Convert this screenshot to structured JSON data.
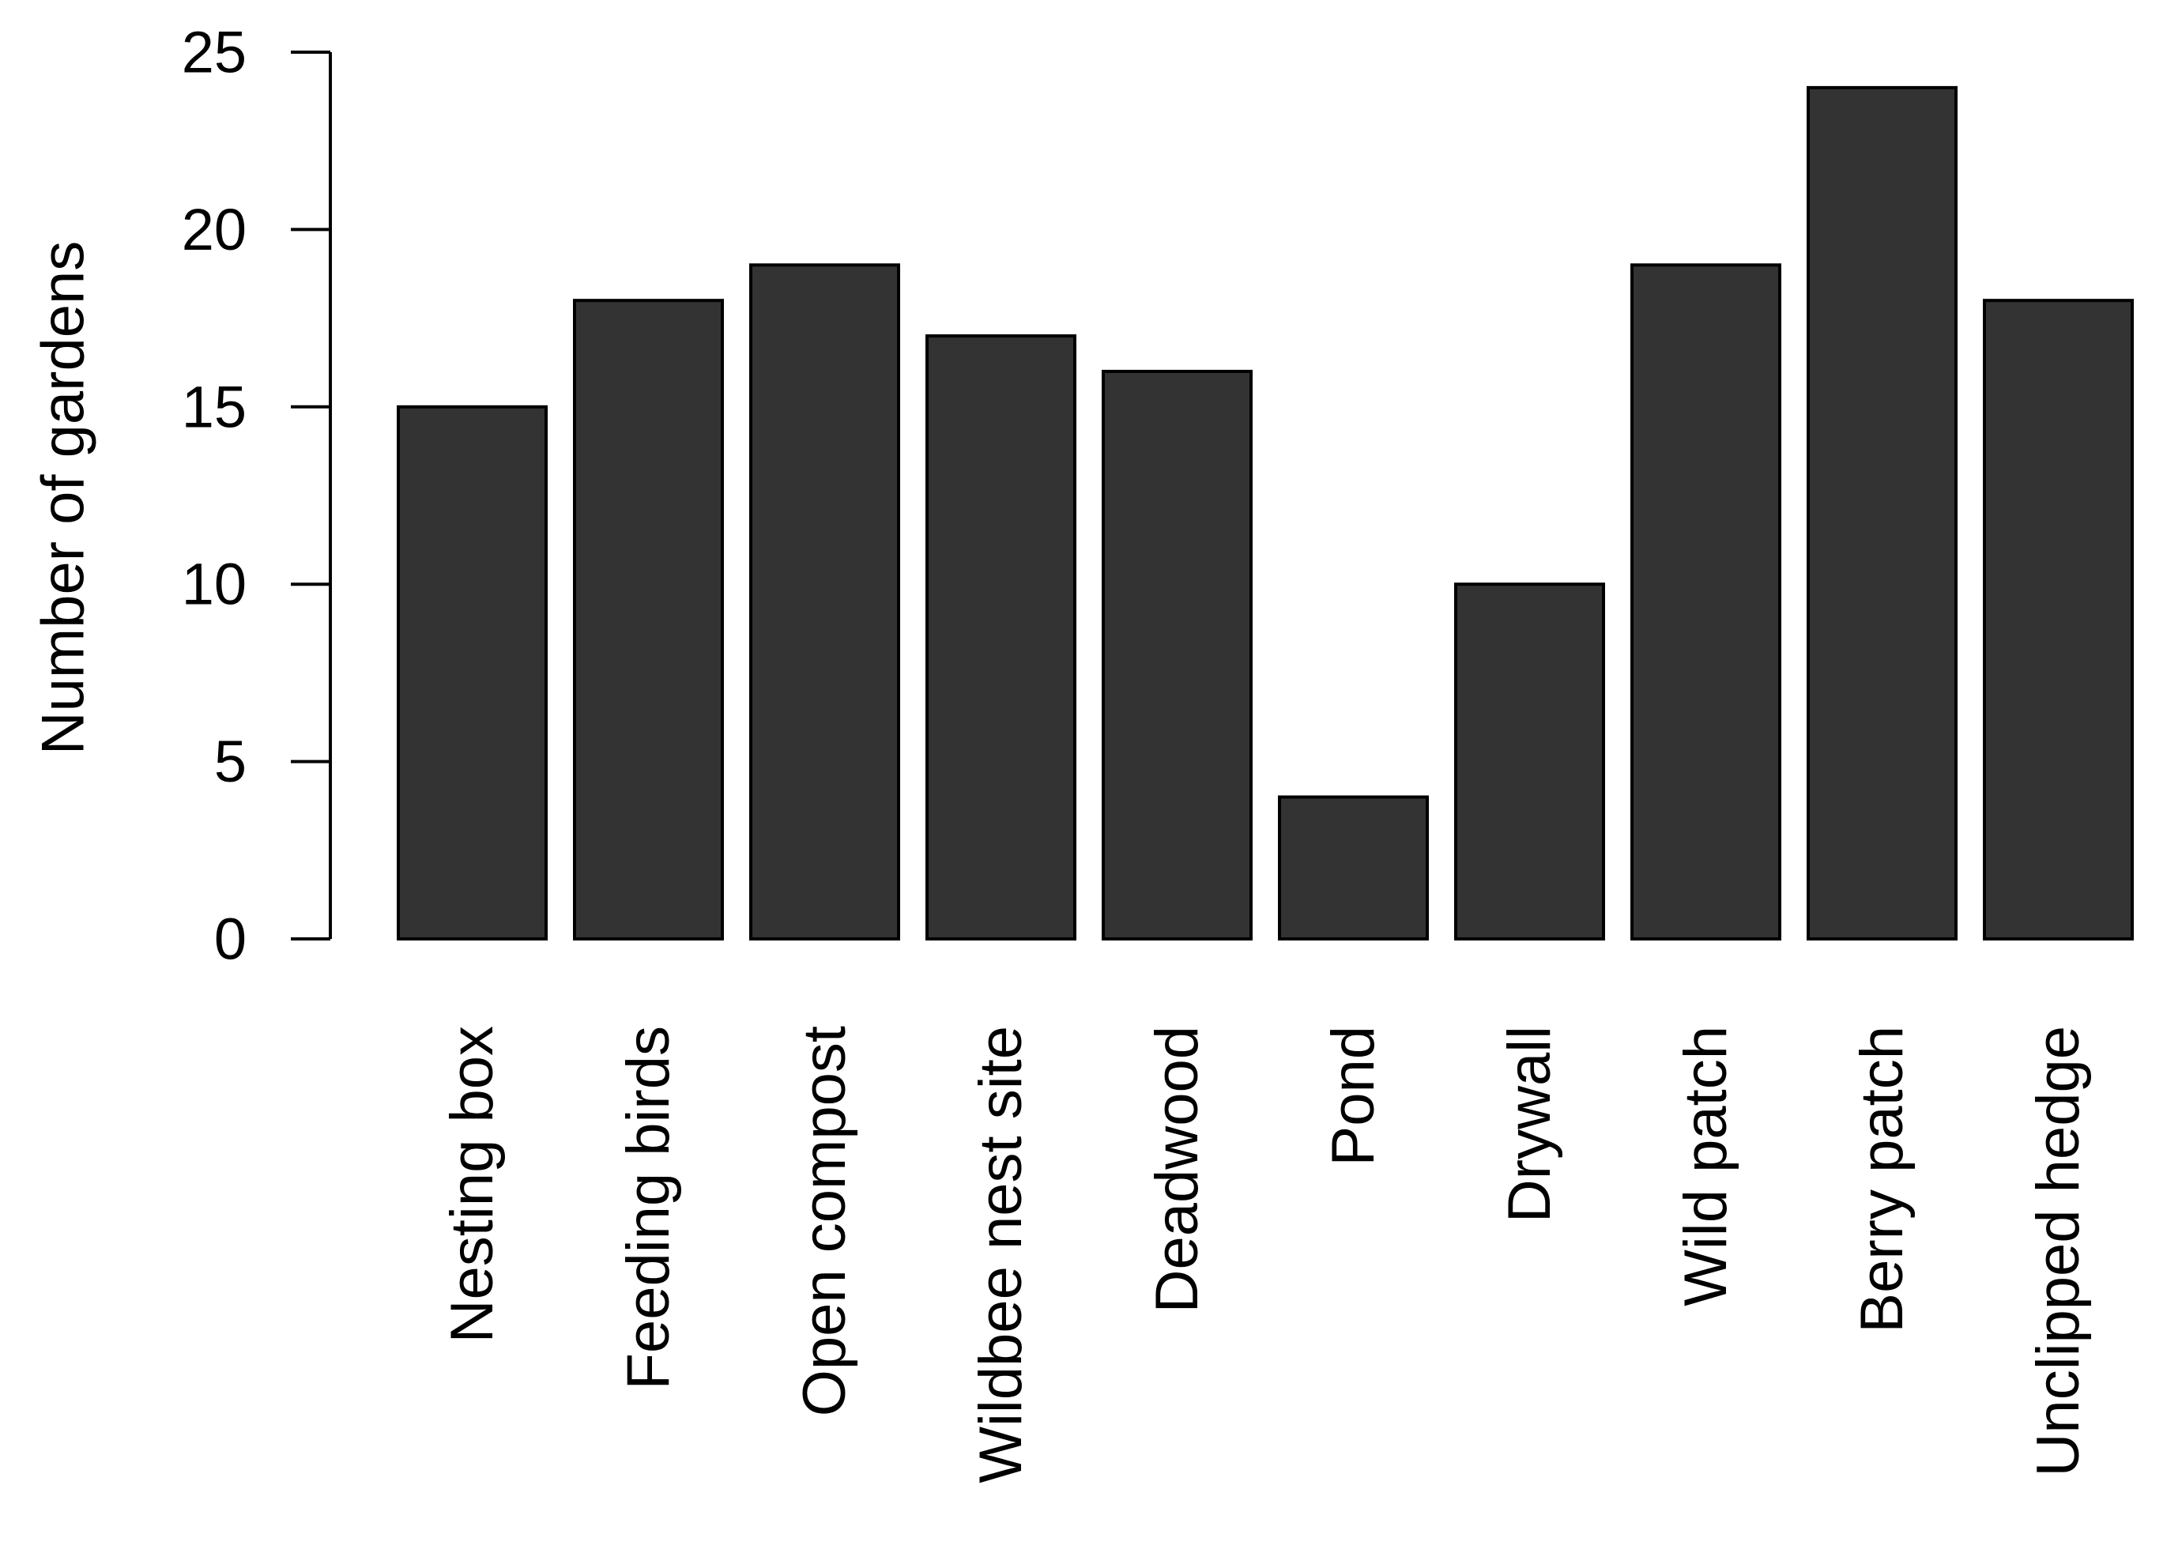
{
  "chart_data": {
    "type": "bar",
    "categories": [
      "Nesting box",
      "Feeding birds",
      "Open compost",
      "Wildbee nest site",
      "Deadwood",
      "Pond",
      "Drywall",
      "Wild patch",
      "Berry patch",
      "Unclipped hedge"
    ],
    "values": [
      15,
      18,
      19,
      17,
      16,
      4,
      10,
      19,
      24,
      18
    ],
    "ylabel": "Number of gardens",
    "xlabel": "",
    "ylim": [
      0,
      25
    ],
    "yticks": [
      "0",
      "5",
      "10",
      "15",
      "20",
      "25"
    ],
    "bar_color": "#333333",
    "grid": false,
    "legend": "none"
  }
}
